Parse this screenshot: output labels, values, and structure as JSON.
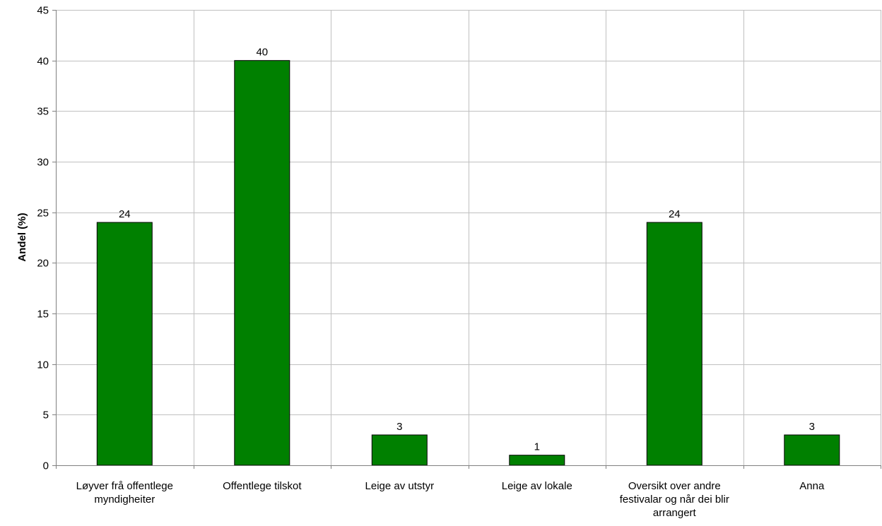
{
  "chart_data": {
    "type": "bar",
    "categories": [
      "Løyver frå offentlege myndigheiter",
      "Offentlege tilskot",
      "Leige av utstyr",
      "Leige av lokale",
      "Oversikt over andre festivalar og når dei blir arrangert",
      "Anna"
    ],
    "category_lines": [
      [
        "Løyver frå offentlege",
        "myndigheiter"
      ],
      [
        "Offentlege tilskot"
      ],
      [
        "Leige av utstyr"
      ],
      [
        "Leige av lokale"
      ],
      [
        "Oversikt over andre",
        "festivalar og når dei blir",
        "arrangert"
      ],
      [
        "Anna"
      ]
    ],
    "values": [
      24,
      40,
      3,
      1,
      24,
      3
    ],
    "data_labels": [
      "24",
      "40",
      "3",
      "1",
      "24",
      "3"
    ],
    "xlabel": "",
    "ylabel": "Andel (%)",
    "ylim": [
      0,
      45
    ],
    "yticks": [
      0,
      5,
      10,
      15,
      20,
      25,
      30,
      35,
      40,
      45
    ],
    "grid": true,
    "bar_color": "#008000",
    "legend": "none"
  }
}
